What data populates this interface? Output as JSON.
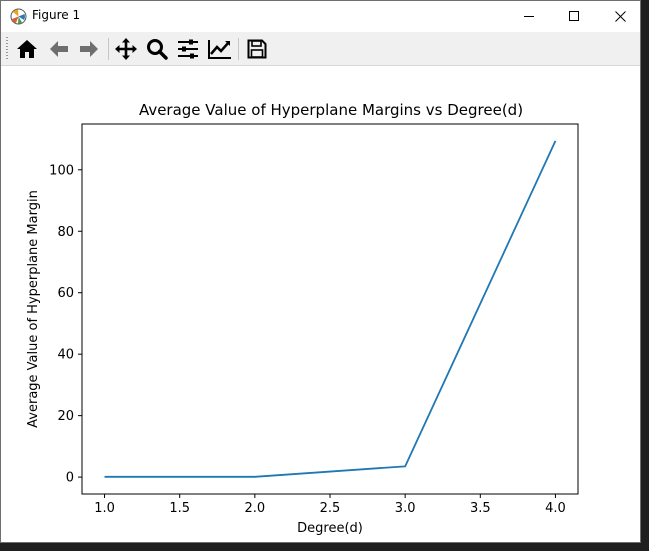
{
  "window": {
    "title": "Figure 1"
  },
  "toolbar": {
    "buttons": [
      {
        "name": "home-icon"
      },
      {
        "name": "back-arrow-icon"
      },
      {
        "name": "forward-arrow-icon"
      },
      {
        "name": "pan-icon"
      },
      {
        "name": "zoom-icon"
      },
      {
        "name": "configure-subplots-icon"
      },
      {
        "name": "edit-axis-icon"
      },
      {
        "name": "save-icon"
      }
    ]
  },
  "chart_data": {
    "type": "line",
    "title": "Average Value of Hyperplane Margins vs Degree(d)",
    "xlabel": "Degree(d)",
    "ylabel": "Average Value of Hyperplane Margin",
    "xlim": [
      0.85,
      4.15
    ],
    "ylim": [
      -5.5,
      114.9
    ],
    "x": [
      1.0,
      2.0,
      3.0,
      4.0
    ],
    "series": [
      {
        "name": "",
        "color": "#1f77b4",
        "values": [
          0.1,
          0.1,
          3.5,
          109.4
        ]
      }
    ],
    "xticks": [
      1.0,
      1.5,
      2.0,
      2.5,
      3.0,
      3.5,
      4.0
    ],
    "xtick_labels": [
      "1.0",
      "1.5",
      "2.0",
      "2.5",
      "3.0",
      "3.5",
      "4.0"
    ],
    "yticks": [
      0,
      20,
      40,
      60,
      80,
      100
    ],
    "ytick_labels": [
      "0",
      "20",
      "40",
      "60",
      "80",
      "100"
    ],
    "grid": false
  }
}
